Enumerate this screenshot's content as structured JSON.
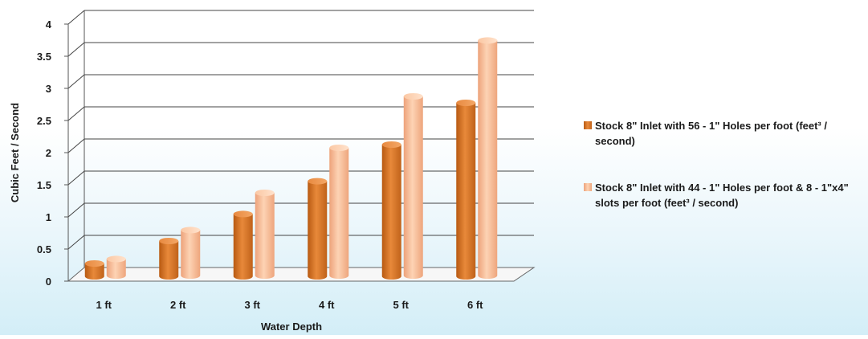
{
  "chart_data": {
    "type": "bar",
    "title": "",
    "xlabel": "Water Depth",
    "ylabel": "Cubic Feet / Second",
    "categories": [
      "1 ft",
      "2 ft",
      "3 ft",
      "4 ft",
      "5 ft",
      "6 ft"
    ],
    "series": [
      {
        "name": "Stock 8\" Inlet with 56 - 1\" Holes per foot (feet³ / second)",
        "values": [
          0.2,
          0.55,
          0.97,
          1.48,
          2.05,
          2.7
        ],
        "color": "#d9772a"
      },
      {
        "name": "Stock 8\" Inlet with 44 - 1\" Holes per foot & 8 - 1\"x4\" slots per foot (feet³ / second)",
        "values": [
          0.27,
          0.72,
          1.3,
          2.0,
          2.8,
          3.67
        ],
        "color": "#f8b98c"
      }
    ],
    "ylim": [
      0,
      4
    ],
    "yticks": [
      "0",
      "0.5",
      "1",
      "1.5",
      "2",
      "2.5",
      "3",
      "3.5",
      "4"
    ],
    "grid": true,
    "legend_position": "right"
  }
}
